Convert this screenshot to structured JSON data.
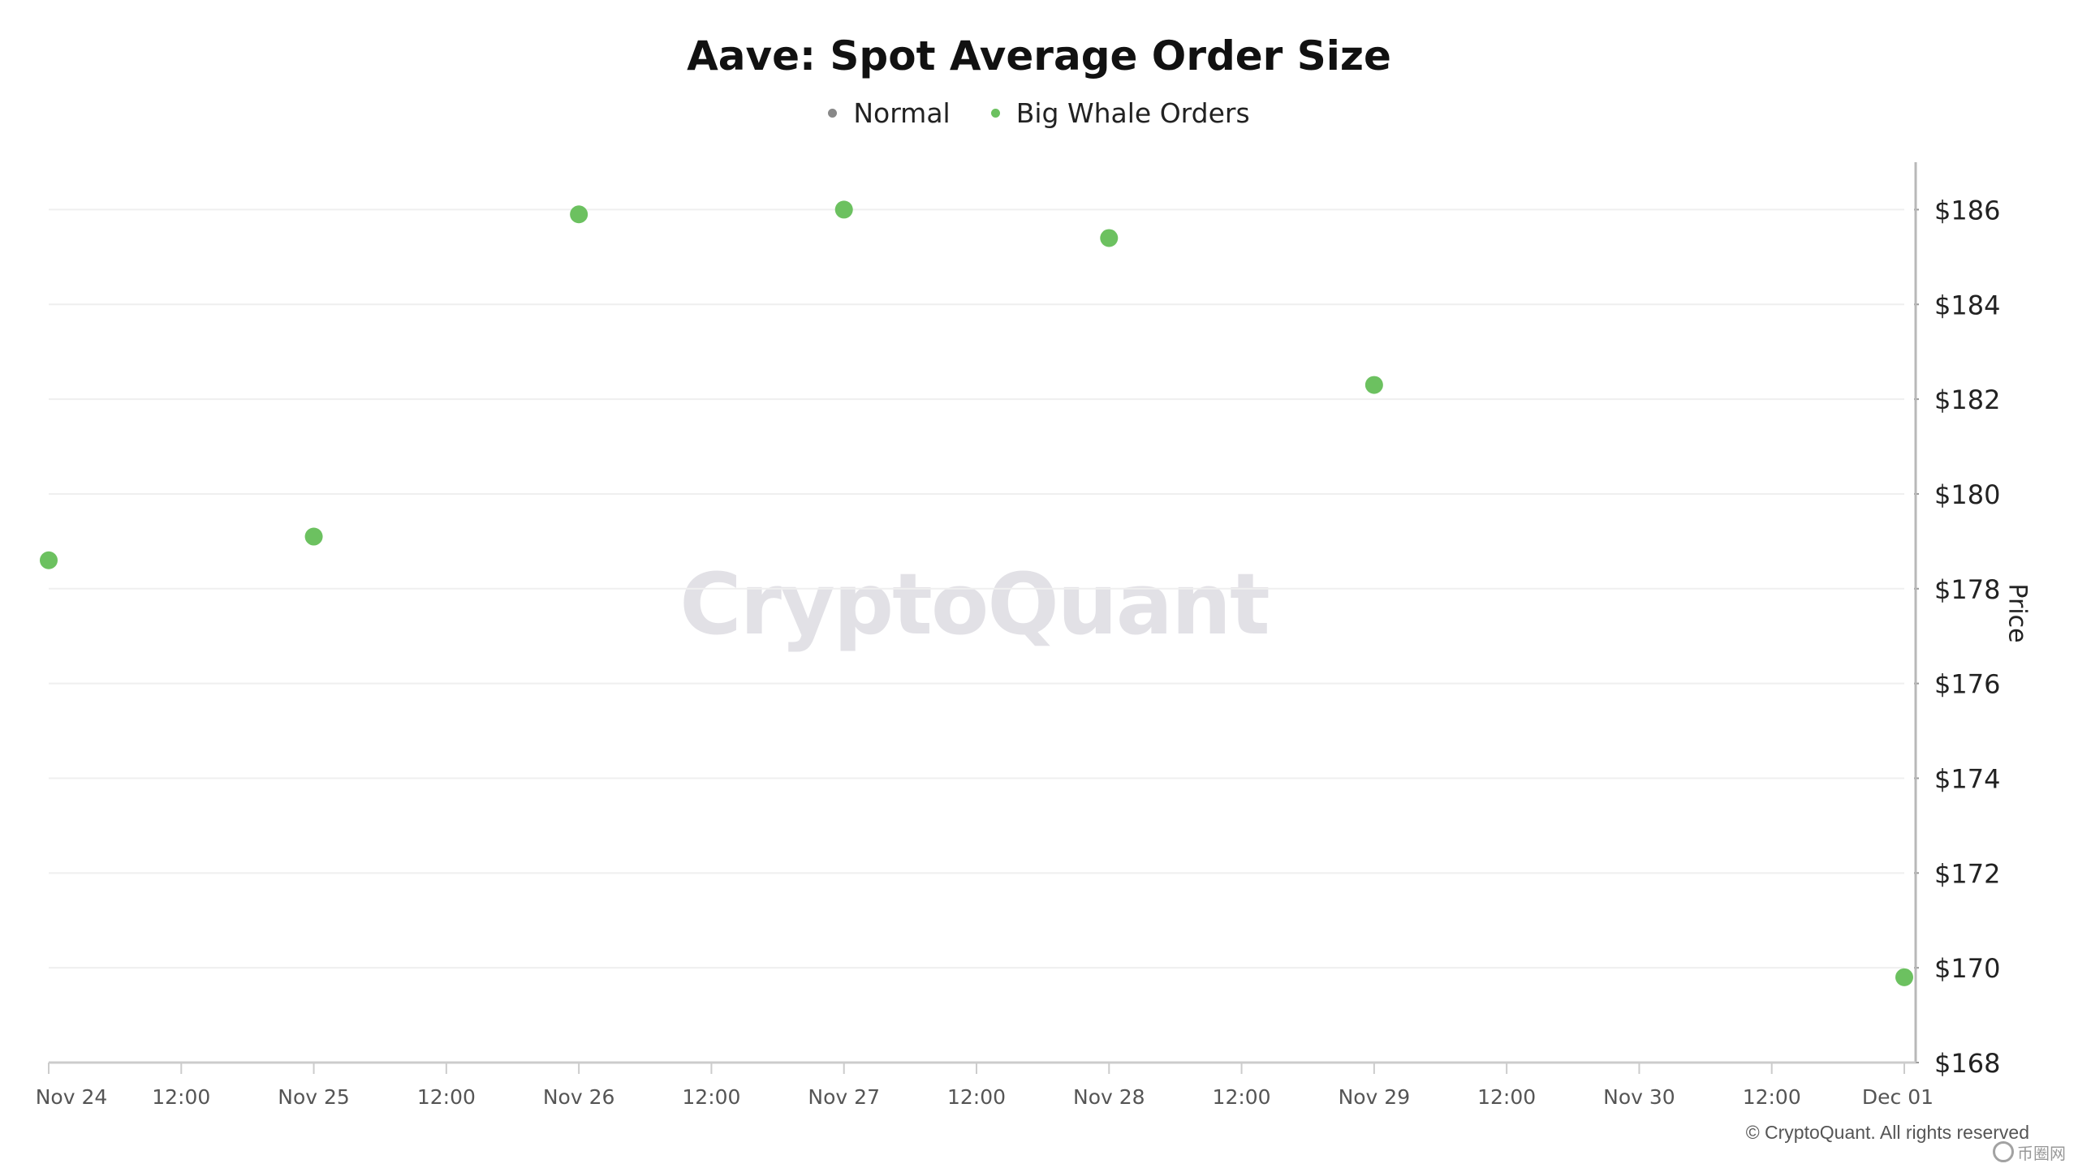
{
  "chart_data": {
    "type": "scatter",
    "title": "Aave: Spot Average Order Size",
    "ylabel": "Price",
    "xlabel": "",
    "x_range": [
      "Nov 24",
      "Dec 01"
    ],
    "ylim": [
      168,
      187
    ],
    "y_ticks": [
      "$168",
      "$170",
      "$172",
      "$174",
      "$176",
      "$178",
      "$180",
      "$182",
      "$184",
      "$186"
    ],
    "x_ticks": [
      "Nov 24",
      "12:00",
      "Nov 25",
      "12:00",
      "Nov 26",
      "12:00",
      "Nov 27",
      "12:00",
      "Nov 28",
      "12:00",
      "Nov 29",
      "12:00",
      "Nov 30",
      "12:00",
      "Dec 01"
    ],
    "grid": true,
    "legend_position": "top-center",
    "series": [
      {
        "name": "Normal",
        "color": "#888888",
        "points": []
      },
      {
        "name": "Big Whale Orders",
        "color": "#6cc160",
        "points": [
          {
            "x": "Nov 24",
            "y": 178.6
          },
          {
            "x": "Nov 25",
            "y": 179.1
          },
          {
            "x": "Nov 26",
            "y": 185.9
          },
          {
            "x": "Nov 27",
            "y": 186.0
          },
          {
            "x": "Nov 28",
            "y": 185.4
          },
          {
            "x": "Nov 29",
            "y": 182.3
          },
          {
            "x": "Dec 01",
            "y": 169.8
          }
        ]
      }
    ]
  },
  "watermark": "CryptoQuant",
  "copyright": "© CryptoQuant. All rights reserved",
  "site_logo_text": "币圈网"
}
